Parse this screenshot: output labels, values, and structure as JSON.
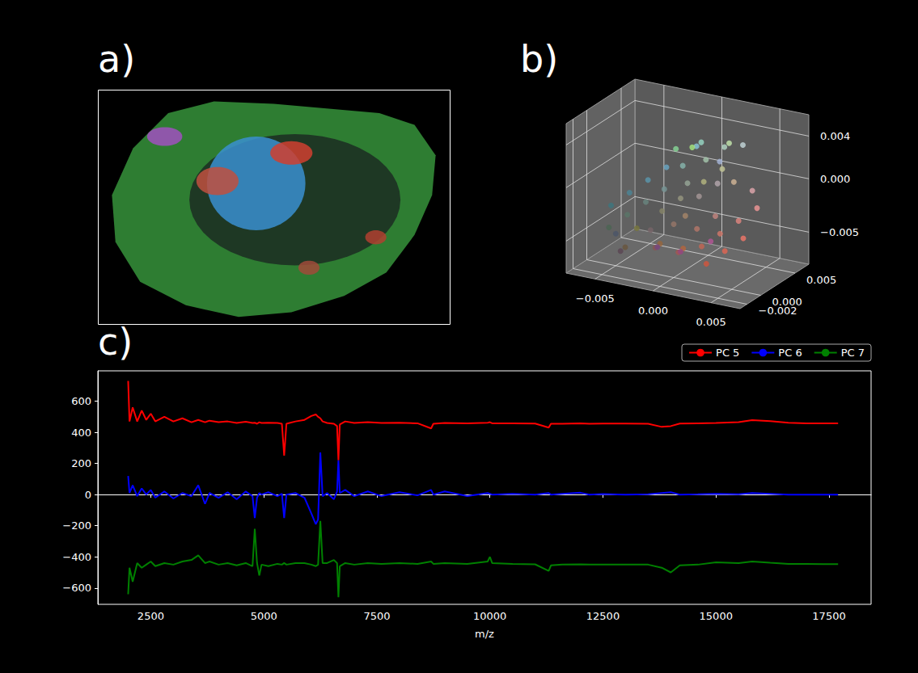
{
  "chart_data": [
    {
      "type": "image",
      "title": "a)",
      "outline": [
        [
          0.1,
          0.25
        ],
        [
          0.2,
          0.1
        ],
        [
          0.33,
          0.05
        ],
        [
          0.5,
          0.06
        ],
        [
          0.65,
          0.08
        ],
        [
          0.8,
          0.1
        ],
        [
          0.9,
          0.15
        ],
        [
          0.96,
          0.28
        ],
        [
          0.95,
          0.45
        ],
        [
          0.9,
          0.62
        ],
        [
          0.82,
          0.78
        ],
        [
          0.7,
          0.88
        ],
        [
          0.55,
          0.95
        ],
        [
          0.4,
          0.97
        ],
        [
          0.25,
          0.92
        ],
        [
          0.12,
          0.82
        ],
        [
          0.05,
          0.65
        ],
        [
          0.04,
          0.45
        ]
      ],
      "fill": "#2e7d32",
      "patches": [
        {
          "color": "#1b2b22",
          "x": 0.56,
          "y": 0.47,
          "rx": 0.3,
          "ry": 0.28
        },
        {
          "color": "#3a8fd0",
          "x": 0.45,
          "y": 0.4,
          "rx": 0.14,
          "ry": 0.2
        },
        {
          "color": "#d04030",
          "x": 0.55,
          "y": 0.27,
          "rx": 0.06,
          "ry": 0.05
        },
        {
          "color": "#c05040",
          "x": 0.34,
          "y": 0.39,
          "rx": 0.06,
          "ry": 0.06
        },
        {
          "color": "#b04030",
          "x": 0.79,
          "y": 0.63,
          "rx": 0.03,
          "ry": 0.03
        },
        {
          "color": "#a04a3a",
          "x": 0.6,
          "y": 0.76,
          "rx": 0.03,
          "ry": 0.03
        },
        {
          "color": "#a050c0",
          "x": 0.19,
          "y": 0.2,
          "rx": 0.05,
          "ry": 0.04
        }
      ]
    },
    {
      "type": "scatter3d",
      "title": "b)",
      "xlim": [
        -0.0075,
        0.0075
      ],
      "ylim": [
        -0.003,
        0.007
      ],
      "zlim": [
        -0.008,
        0.006
      ],
      "xticks": [
        {
          "value": -0.005,
          "label": "−0.005"
        },
        {
          "value": 0,
          "label": "0.000"
        },
        0.005
      ],
      "yticks": [
        {
          "value": -0.002,
          "label": "−0.002"
        },
        {
          "value": 0,
          "label": "0.000"
        },
        0.005
      ],
      "zticks": [
        {
          "value": -0.005,
          "label": "−0.005"
        },
        {
          "value": 0,
          "label": "0.000"
        },
        0.004
      ],
      "grid": true,
      "points": [
        [
          -0.006,
          0.001,
          -0.003
        ],
        [
          -0.005,
          0.002,
          -0.002
        ],
        [
          -0.005,
          -0.001,
          -0.004
        ],
        [
          -0.004,
          0.0,
          -0.003
        ],
        [
          -0.004,
          0.003,
          -0.001
        ],
        [
          -0.003,
          -0.002,
          -0.005
        ],
        [
          -0.003,
          0.001,
          -0.002
        ],
        [
          -0.003,
          0.004,
          0.0
        ],
        [
          -0.002,
          0.0,
          -0.004
        ],
        [
          -0.002,
          0.002,
          -0.001
        ],
        [
          -0.002,
          -0.002,
          -0.003
        ],
        [
          -0.001,
          0.003,
          0.001
        ],
        [
          -0.001,
          0.0,
          -0.002
        ],
        [
          -0.001,
          -0.001,
          -0.005
        ],
        [
          -0.001,
          0.005,
          0.002
        ],
        [
          0.0,
          0.002,
          0.0
        ],
        [
          0.0,
          0.0,
          -0.003
        ],
        [
          0.0,
          -0.002,
          -0.004
        ],
        [
          0.0,
          0.004,
          0.003
        ],
        [
          0.0,
          0.001,
          -0.001
        ],
        [
          0.001,
          0.003,
          0.002
        ],
        [
          0.001,
          0.0,
          -0.002
        ],
        [
          0.001,
          -0.001,
          -0.005
        ],
        [
          0.001,
          0.005,
          0.001
        ],
        [
          0.001,
          0.002,
          -0.001
        ],
        [
          0.002,
          0.001,
          0.001
        ],
        [
          0.002,
          -0.002,
          -0.004
        ],
        [
          0.002,
          0.004,
          0.003
        ],
        [
          0.002,
          0.0,
          -0.003
        ],
        [
          0.002,
          0.003,
          0.0
        ],
        [
          0.003,
          0.002,
          0.002
        ],
        [
          0.003,
          -0.001,
          -0.004
        ],
        [
          0.003,
          0.001,
          -0.002
        ],
        [
          0.003,
          0.005,
          0.003
        ],
        [
          0.004,
          0.0,
          -0.003
        ],
        [
          0.004,
          0.002,
          0.001
        ],
        [
          0.004,
          -0.002,
          -0.005
        ],
        [
          0.005,
          0.001,
          -0.002
        ],
        [
          0.005,
          0.003,
          0.0
        ],
        [
          0.005,
          -0.001,
          -0.004
        ],
        [
          0.006,
          0.0,
          -0.003
        ],
        [
          0.006,
          0.002,
          -0.001
        ],
        [
          -0.002,
          0.001,
          -0.006
        ],
        [
          0.0,
          0.001,
          -0.006
        ],
        [
          0.002,
          0.002,
          -0.005
        ],
        [
          -0.004,
          -0.001,
          -0.006
        ],
        [
          0.001,
          0.001,
          0.004
        ],
        [
          -0.001,
          0.002,
          0.003
        ],
        [
          0.003,
          0.003,
          0.004
        ],
        [
          -0.005,
          0.0,
          -0.005
        ]
      ]
    },
    {
      "type": "line",
      "title": "c)",
      "x_label": "m/z",
      "xlim": [
        1330,
        18430
      ],
      "xticks": [
        2500,
        5000,
        7500,
        10000,
        12500,
        15000,
        17500
      ],
      "ylim": [
        -705,
        795
      ],
      "yticks": [
        {
          "value": -600,
          "label": "−600"
        },
        {
          "value": -400,
          "label": "−400"
        },
        {
          "value": -200,
          "label": "−200"
        },
        0,
        200,
        400,
        600
      ],
      "grid": false,
      "legend": "top",
      "x": [
        2000,
        2030,
        2100,
        2200,
        2300,
        2400,
        2500,
        2600,
        2800,
        3000,
        3200,
        3400,
        3550,
        3700,
        3800,
        4000,
        4200,
        4400,
        4600,
        4750,
        4800,
        4850,
        4900,
        4950,
        5100,
        5300,
        5400,
        5450,
        5500,
        5700,
        5900,
        6050,
        6150,
        6200,
        6250,
        6300,
        6400,
        6550,
        6620,
        6650,
        6680,
        6800,
        7000,
        7300,
        7600,
        8000,
        8400,
        8700,
        8750,
        9000,
        9500,
        9950,
        10000,
        10050,
        10500,
        11000,
        11300,
        11350,
        11600,
        12000,
        12200,
        12500,
        13000,
        13500,
        13800,
        14000,
        14200,
        14600,
        15000,
        15500,
        15800,
        16200,
        16600,
        17000,
        17700
      ],
      "series": [
        {
          "name": "PC 5",
          "color": "#ff0000",
          "values": [
            730,
            470,
            560,
            470,
            540,
            480,
            520,
            470,
            500,
            470,
            490,
            465,
            480,
            465,
            475,
            465,
            470,
            460,
            468,
            460,
            462,
            455,
            465,
            460,
            462,
            460,
            455,
            250,
            455,
            470,
            480,
            505,
            515,
            500,
            490,
            470,
            460,
            455,
            440,
            220,
            450,
            470,
            460,
            465,
            460,
            462,
            458,
            425,
            455,
            460,
            458,
            462,
            465,
            458,
            457,
            456,
            430,
            455,
            455,
            457,
            455,
            456,
            456,
            455,
            435,
            440,
            456,
            458,
            460,
            465,
            478,
            472,
            462,
            458,
            457
          ]
        },
        {
          "name": "PC 6",
          "color": "#0000ff",
          "values": [
            120,
            10,
            60,
            -10,
            40,
            0,
            30,
            -20,
            20,
            -25,
            10,
            -10,
            60,
            -60,
            10,
            -20,
            15,
            -30,
            20,
            -10,
            -150,
            -20,
            10,
            0,
            15,
            -10,
            5,
            -150,
            0,
            10,
            -20,
            -120,
            -190,
            -160,
            270,
            -10,
            10,
            -30,
            20,
            220,
            10,
            30,
            -10,
            20,
            -10,
            15,
            -5,
            30,
            0,
            20,
            -10,
            10,
            5,
            0,
            5,
            0,
            10,
            0,
            5,
            12,
            0,
            3,
            0,
            2,
            10,
            15,
            0,
            2,
            5,
            2,
            10,
            5,
            0,
            0,
            0
          ]
        },
        {
          "name": "PC 7",
          "color": "#008000",
          "values": [
            -640,
            -470,
            -560,
            -440,
            -470,
            -450,
            -430,
            -460,
            -440,
            -450,
            -430,
            -420,
            -390,
            -440,
            -430,
            -450,
            -440,
            -455,
            -440,
            -460,
            -220,
            -440,
            -520,
            -450,
            -460,
            -445,
            -450,
            -440,
            -450,
            -440,
            -440,
            -450,
            -460,
            -450,
            -170,
            -440,
            -440,
            -420,
            -440,
            -660,
            -460,
            -440,
            -450,
            -440,
            -445,
            -440,
            -445,
            -430,
            -445,
            -440,
            -445,
            -430,
            -400,
            -440,
            -445,
            -448,
            -490,
            -455,
            -450,
            -448,
            -450,
            -449,
            -450,
            -450,
            -470,
            -500,
            -455,
            -450,
            -435,
            -440,
            -430,
            -438,
            -445,
            -446,
            -447
          ]
        }
      ]
    }
  ]
}
